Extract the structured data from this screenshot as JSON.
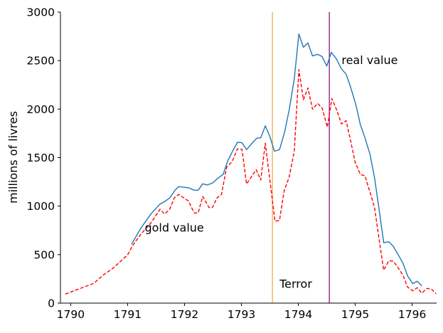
{
  "chart_data": {
    "type": "line",
    "title": "",
    "xlabel": "",
    "ylabel": "millions of livres",
    "xlim": [
      1789.82,
      1796.43
    ],
    "ylim": [
      0,
      3000
    ],
    "grid": false,
    "x_ticks": [
      1790,
      1791,
      1792,
      1793,
      1794,
      1795,
      1796
    ],
    "y_ticks": [
      0,
      500,
      1000,
      1500,
      2000,
      2500,
      3000
    ],
    "series": [
      {
        "name": "real value",
        "color": "#1f77b4",
        "style": "solid",
        "x": [
          1791.07,
          1791.24,
          1791.41,
          1791.57,
          1791.65,
          1791.74,
          1791.84,
          1791.9,
          1792.07,
          1792.17,
          1792.24,
          1792.32,
          1792.4,
          1792.49,
          1792.57,
          1792.68,
          1792.76,
          1792.84,
          1792.93,
          1793.01,
          1793.09,
          1793.18,
          1793.27,
          1793.34,
          1793.42,
          1793.5,
          1793.58,
          1793.67,
          1793.76,
          1793.84,
          1793.93,
          1794.01,
          1794.09,
          1794.17,
          1794.25,
          1794.34,
          1794.42,
          1794.5,
          1794.58,
          1794.67,
          1794.76,
          1794.84,
          1794.92,
          1795.01,
          1795.09,
          1795.17,
          1795.26,
          1795.34,
          1795.43,
          1795.5,
          1795.59,
          1795.67,
          1795.76,
          1795.84,
          1795.92,
          1796.01,
          1796.09,
          1796.17
        ],
        "y": [
          607,
          778,
          919,
          1022,
          1047,
          1084,
          1169,
          1201,
          1189,
          1164,
          1164,
          1230,
          1218,
          1237,
          1279,
          1328,
          1467,
          1560,
          1658,
          1653,
          1582,
          1643,
          1700,
          1704,
          1827,
          1717,
          1566,
          1582,
          1765,
          1992,
          2315,
          2775,
          2638,
          2682,
          2548,
          2565,
          2541,
          2443,
          2585,
          2517,
          2414,
          2360,
          2223,
          2047,
          1839,
          1704,
          1533,
          1288,
          921,
          623,
          633,
          584,
          494,
          409,
          281,
          200,
          225,
          176
        ]
      },
      {
        "name": "gold value",
        "color": "#ff0000",
        "style": "dashed",
        "x": [
          1789.905,
          1790.405,
          1790.57,
          1790.74,
          1791.0,
          1791.09,
          1791.24,
          1791.41,
          1791.57,
          1791.65,
          1791.74,
          1791.82,
          1791.9,
          1792.07,
          1792.17,
          1792.24,
          1792.32,
          1792.43,
          1792.49,
          1792.57,
          1792.65,
          1792.74,
          1792.84,
          1792.93,
          1793.01,
          1793.09,
          1793.26,
          1793.34,
          1793.42,
          1793.59,
          1793.67,
          1793.75,
          1793.84,
          1793.93,
          1794.01,
          1794.09,
          1794.17,
          1794.25,
          1794.34,
          1794.42,
          1794.51,
          1794.59,
          1794.67,
          1794.76,
          1794.84,
          1794.92,
          1795.0,
          1795.09,
          1795.17,
          1795.26,
          1795.34,
          1795.42,
          1795.5,
          1795.59,
          1795.67,
          1795.76,
          1795.84,
          1795.92,
          1796.01,
          1796.09,
          1796.17,
          1796.26,
          1796.34,
          1796.42
        ],
        "y": [
          93,
          203,
          289,
          357,
          497,
          594,
          716,
          826,
          968,
          919,
          968,
          1084,
          1120,
          1052,
          929,
          929,
          1100,
          985,
          985,
          1084,
          1120,
          1401,
          1462,
          1590,
          1585,
          1228,
          1375,
          1269,
          1649,
          844,
          853,
          1154,
          1301,
          1570,
          2406,
          2096,
          2218,
          1998,
          2059,
          2010,
          1815,
          2108,
          1998,
          1847,
          1881,
          1668,
          1448,
          1326,
          1313,
          1142,
          983,
          653,
          340,
          437,
          432,
          359,
          286,
          164,
          127,
          159,
          103,
          152,
          144,
          95
        ]
      }
    ],
    "vlines": [
      {
        "x": 1793.545,
        "color": "#f5a340"
      },
      {
        "x": 1794.545,
        "color": "#800080"
      }
    ],
    "annotations": [
      {
        "text": "gold value",
        "x": 1791.3,
        "y": 780
      },
      {
        "text": "real value",
        "x": 1794.76,
        "y": 2510
      },
      {
        "text": "Terror",
        "x": 1793.67,
        "y": 200
      }
    ]
  }
}
